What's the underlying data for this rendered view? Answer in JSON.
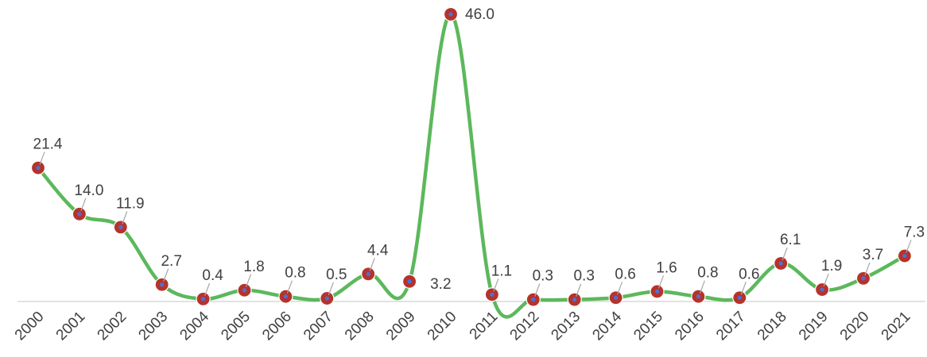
{
  "chart_data": {
    "type": "line",
    "title": "",
    "xlabel": "",
    "ylabel": "",
    "x": [
      "2000",
      "2001",
      "2002",
      "2003",
      "2004",
      "2005",
      "2006",
      "2007",
      "2008",
      "2009",
      "2010",
      "2011",
      "2012",
      "2013",
      "2014",
      "2015",
      "2016",
      "2017",
      "2018",
      "2019",
      "2020",
      "2021"
    ],
    "series": [
      {
        "values": [
          21.4,
          14.0,
          11.9,
          2.7,
          0.4,
          1.8,
          0.8,
          0.5,
          4.4,
          3.2,
          46.0,
          1.1,
          0.3,
          0.3,
          0.6,
          1.6,
          0.8,
          0.6,
          6.1,
          1.9,
          3.7,
          7.3
        ],
        "labels": [
          "21.4",
          "14.0",
          "11.9",
          "2.7",
          "0.4",
          "1.8",
          "0.8",
          "0.5",
          "4.4",
          "3.2",
          "46.0",
          "1.1",
          "0.3",
          "0.3",
          "0.6",
          "1.6",
          "0.8",
          "0.6",
          "6.1",
          "1.9",
          "3.7",
          "7.3"
        ]
      }
    ],
    "ylim": [
      0,
      46.0
    ],
    "grid": false,
    "legend": "none",
    "smooth": true,
    "colors": {
      "line": "#5cb85c",
      "marker_fill": "#b5332b",
      "marker_center": "#4f6fd6",
      "baseline": "#d9d9d9",
      "text": "#404040"
    }
  }
}
